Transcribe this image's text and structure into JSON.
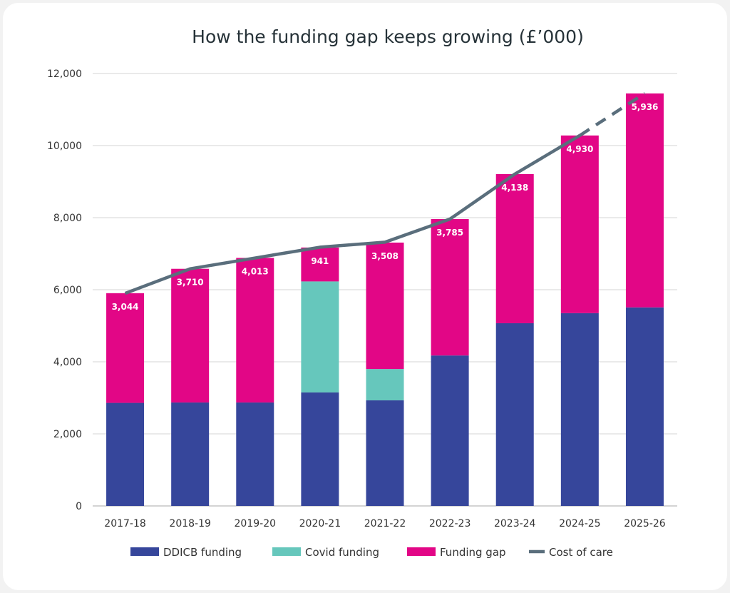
{
  "chart_data": {
    "type": "bar",
    "stacked": true,
    "title": "How the funding gap keeps growing (£’000)",
    "xlabel": "",
    "ylabel": "",
    "ylim": [
      0,
      12000
    ],
    "yticks": [
      "0",
      "2,000",
      "4,000",
      "6,000",
      "8,000",
      "10,000",
      "12,000"
    ],
    "ytick_values": [
      0,
      2000,
      4000,
      6000,
      8000,
      10000,
      12000
    ],
    "grid": true,
    "legend_position": "bottom",
    "categories": [
      "2017-18",
      "2018-19",
      "2019-20",
      "2020-21",
      "2021-22",
      "2022-23",
      "2023-24",
      "2024-25",
      "2025-26"
    ],
    "series": [
      {
        "name": "DDICB funding",
        "kind": "bar",
        "color": "#36469b",
        "values": [
          2860,
          2870,
          2870,
          3150,
          2930,
          4175,
          5070,
          5350,
          5510
        ]
      },
      {
        "name": "Covid funding",
        "kind": "bar",
        "color": "#66c7bc",
        "values": [
          0,
          0,
          0,
          3080,
          870,
          0,
          0,
          0,
          0
        ]
      },
      {
        "name": "Funding gap",
        "kind": "bar",
        "color": "#e20686",
        "values": [
          3044,
          3710,
          4013,
          941,
          3508,
          3785,
          4138,
          4930,
          5936
        ],
        "data_labels": [
          "3,044",
          "3,710",
          "4,013",
          "941",
          "3,508",
          "3,785",
          "4,138",
          "4,930",
          "5,936"
        ]
      },
      {
        "name": "Cost of care",
        "kind": "line",
        "color": "#5a6e7c",
        "values": [
          5900,
          6580,
          6880,
          7180,
          7320,
          7960,
          9210,
          10280,
          11450
        ],
        "dashed_from": "2024-25"
      }
    ]
  }
}
